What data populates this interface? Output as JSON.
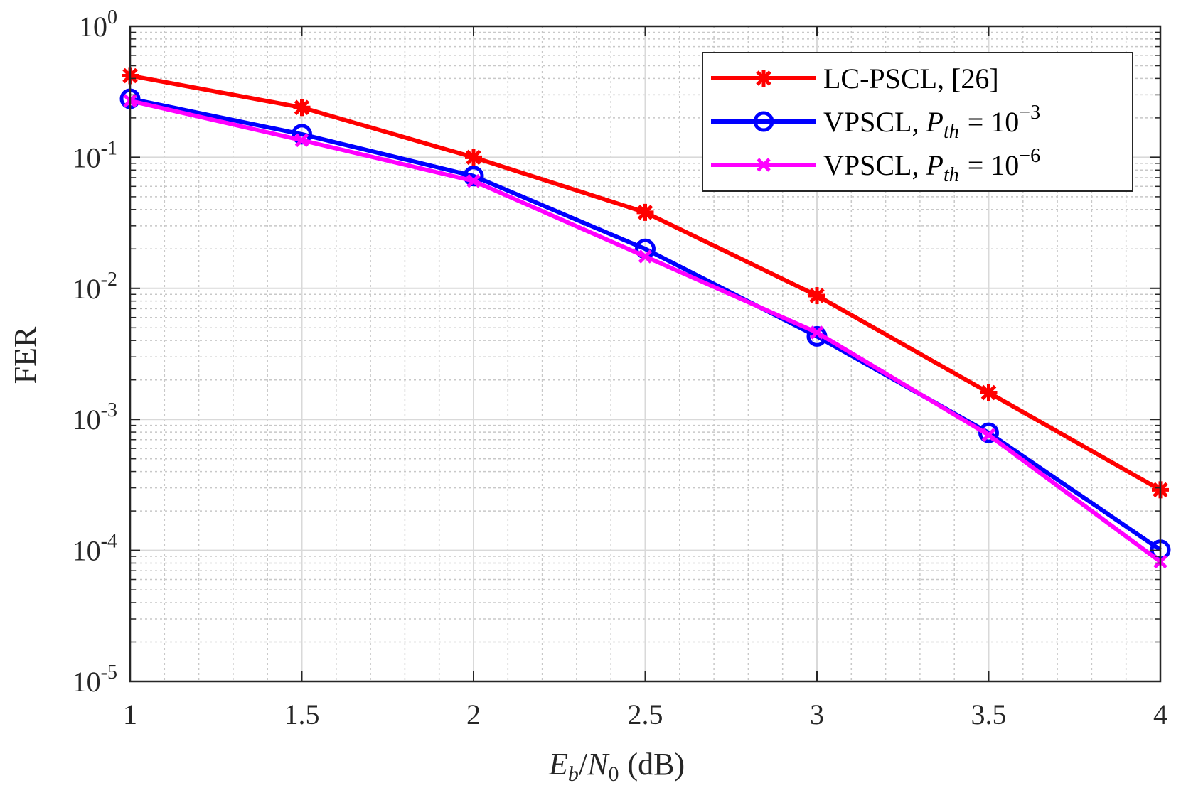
{
  "chart_data": {
    "type": "line",
    "title": "",
    "xlabel": "E_b/N_0 (dB)",
    "xlabel_parts": {
      "E": "E",
      "b": "b",
      "slash": "/",
      "N": "N",
      "zero": "0",
      "unit": "(dB)"
    },
    "ylabel": "FER",
    "xlim": [
      1,
      4
    ],
    "ylim_log10": [
      -5,
      0
    ],
    "yscale": "log",
    "grid": true,
    "minor_grid": true,
    "legend_position": "top-right",
    "x_ticks": [
      1,
      1.5,
      2,
      2.5,
      3,
      3.5,
      4
    ],
    "x_tick_labels": [
      "1",
      "1.5",
      "2",
      "2.5",
      "3",
      "3.5",
      "4"
    ],
    "y_ticks": [
      {
        "base": "10",
        "exp": "0",
        "value": 1
      },
      {
        "base": "10",
        "exp": "-1",
        "value": 0.1
      },
      {
        "base": "10",
        "exp": "-2",
        "value": 0.01
      },
      {
        "base": "10",
        "exp": "-3",
        "value": 0.001
      },
      {
        "base": "10",
        "exp": "-4",
        "value": 0.0001
      },
      {
        "base": "10",
        "exp": "-5",
        "value": 1e-05
      }
    ],
    "x": [
      1,
      1.5,
      2,
      2.5,
      3,
      3.5,
      4
    ],
    "series": [
      {
        "name": "LC-PSCL, [26]",
        "legend_text": "LC-PSCL, [26]",
        "color": "#ff0000",
        "marker": "asterisk",
        "values": [
          0.42,
          0.24,
          0.1,
          0.038,
          0.0088,
          0.0016,
          0.00029
        ]
      },
      {
        "name": "VPSCL, P_th = 10^-3",
        "legend_text": "VPSCL, ",
        "legend_math": {
          "P": "P",
          "sub": "th",
          "eq": "= 10",
          "exp": "−3"
        },
        "color": "#0000ff",
        "marker": "circle",
        "values": [
          0.28,
          0.15,
          0.072,
          0.02,
          0.0043,
          0.00079,
          0.000101
        ]
      },
      {
        "name": "VPSCL, P_th = 10^-6",
        "legend_text": "VPSCL, ",
        "legend_math": {
          "P": "P",
          "sub": "th",
          "eq": "= 10",
          "exp": "−6"
        },
        "color": "#ff00ff",
        "marker": "x",
        "values": [
          0.27,
          0.135,
          0.066,
          0.0175,
          0.0046,
          0.00076,
          8.2e-05
        ]
      }
    ]
  }
}
